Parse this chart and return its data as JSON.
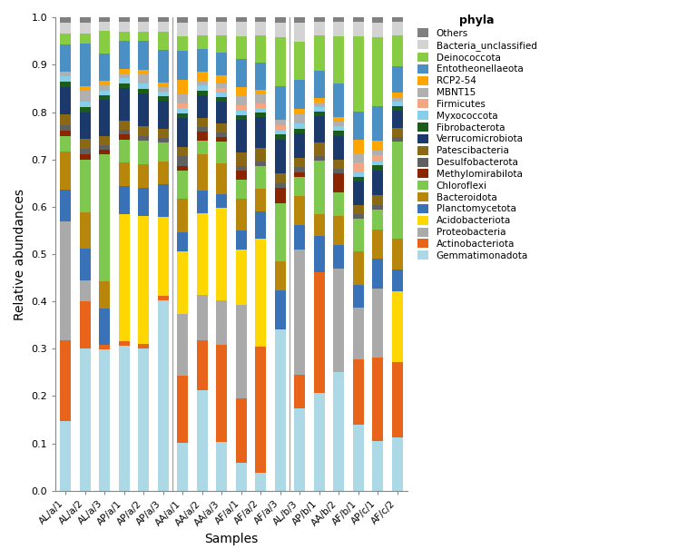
{
  "samples": [
    "AL/a/1",
    "AL/a/2",
    "AL/a/3",
    "AP/a/1",
    "AP/a/2",
    "AP/a/3",
    "AA/a/1",
    "AA/a/2",
    "AA/a/3",
    "AF/a/1",
    "AF/a/2",
    "AF/a/3",
    "AL/b/3",
    "AP/b/1",
    "AA/b/2",
    "AF/b/1",
    "AP/c/1",
    "AF/c/2"
  ],
  "group_dividers": [
    6,
    12
  ],
  "phyla": [
    "Gemmatimonadota",
    "Actinobacteriota",
    "Proteobacteria",
    "Acidobacteriota",
    "Planctomycetota",
    "Bacteroidota",
    "Chloroflexi",
    "Methylomirabilota",
    "Desulfobacterota",
    "Patescibacteria",
    "Verrucomicrobiota",
    "Fibrobacterota",
    "Myxococcota",
    "Firmicutes",
    "MBNT15",
    "RCP2-54",
    "Entotheonellaeota",
    "Deinococcota",
    "Bacteria_unclassified",
    "Others"
  ],
  "colors": {
    "Gemmatimonadota": "#ADD8E6",
    "Actinobacteriota": "#E8641A",
    "Proteobacteria": "#AAAAAA",
    "Acidobacteriota": "#FFD700",
    "Planctomycetota": "#3A72B8",
    "Bacteroidota": "#B8860B",
    "Chloroflexi": "#7EC850",
    "Methylomirabilota": "#8B2500",
    "Desulfobacterota": "#606060",
    "Patescibacteria": "#8B6914",
    "Verrucomicrobiota": "#1B3A6B",
    "Fibrobacterota": "#1A5C1A",
    "Myxococcota": "#87CEEB",
    "Firmicutes": "#F4A582",
    "MBNT15": "#B0B0B0",
    "RCP2-54": "#FFA500",
    "Entotheonellaeota": "#4A90C4",
    "Deinococcota": "#88CC44",
    "Bacteria_unclassified": "#D3D3D3",
    "Others": "#808080"
  },
  "data": {
    "Gemmatimonadota": [
      0.13,
      0.27,
      0.31,
      0.31,
      0.3,
      0.41,
      0.1,
      0.22,
      0.11,
      0.06,
      0.04,
      0.33,
      0.17,
      0.22,
      0.25,
      0.14,
      0.1,
      0.12
    ],
    "Actinobacteriota": [
      0.15,
      0.09,
      0.01,
      0.01,
      0.01,
      0.01,
      0.14,
      0.11,
      0.22,
      0.14,
      0.28,
      0.0,
      0.07,
      0.27,
      0.0,
      0.14,
      0.17,
      0.17
    ],
    "Proteobacteria": [
      0.22,
      0.04,
      0.0,
      0.0,
      0.0,
      0.0,
      0.13,
      0.1,
      0.1,
      0.2,
      0.0,
      0.0,
      0.26,
      0.0,
      0.22,
      0.11,
      0.14,
      0.0
    ],
    "Acidobacteriota": [
      0.0,
      0.0,
      0.0,
      0.27,
      0.27,
      0.17,
      0.13,
      0.18,
      0.21,
      0.12,
      0.24,
      0.0,
      0.0,
      0.0,
      0.0,
      0.0,
      0.0,
      0.16
    ],
    "Planctomycetota": [
      0.06,
      0.06,
      0.08,
      0.06,
      0.06,
      0.07,
      0.04,
      0.05,
      0.03,
      0.04,
      0.06,
      0.08,
      0.05,
      0.08,
      0.05,
      0.05,
      0.06,
      0.05
    ],
    "Bacteroidota": [
      0.07,
      0.07,
      0.06,
      0.05,
      0.05,
      0.05,
      0.07,
      0.08,
      0.07,
      0.07,
      0.05,
      0.06,
      0.06,
      0.05,
      0.06,
      0.07,
      0.06,
      0.07
    ],
    "Chloroflexi": [
      0.03,
      0.1,
      0.28,
      0.05,
      0.05,
      0.04,
      0.06,
      0.03,
      0.05,
      0.04,
      0.05,
      0.12,
      0.04,
      0.12,
      0.05,
      0.07,
      0.04,
      0.22
    ],
    "Methylomirabilota": [
      0.01,
      0.01,
      0.01,
      0.01,
      0.0,
      0.0,
      0.01,
      0.02,
      0.01,
      0.02,
      0.0,
      0.03,
      0.01,
      0.0,
      0.04,
      0.0,
      0.0,
      0.0
    ],
    "Desulfobacterota": [
      0.01,
      0.01,
      0.01,
      0.01,
      0.01,
      0.01,
      0.02,
      0.01,
      0.01,
      0.01,
      0.01,
      0.01,
      0.01,
      0.01,
      0.01,
      0.01,
      0.01,
      0.01
    ],
    "Patescibacteria": [
      0.02,
      0.02,
      0.02,
      0.02,
      0.02,
      0.02,
      0.02,
      0.02,
      0.02,
      0.03,
      0.03,
      0.02,
      0.02,
      0.03,
      0.02,
      0.02,
      0.02,
      0.02
    ],
    "Verrucomicrobiota": [
      0.05,
      0.05,
      0.08,
      0.07,
      0.07,
      0.06,
      0.06,
      0.05,
      0.05,
      0.07,
      0.07,
      0.07,
      0.05,
      0.06,
      0.05,
      0.05,
      0.05,
      0.04
    ],
    "Fibrobacterota": [
      0.01,
      0.01,
      0.01,
      0.01,
      0.01,
      0.01,
      0.01,
      0.01,
      0.01,
      0.01,
      0.01,
      0.01,
      0.01,
      0.01,
      0.01,
      0.01,
      0.01,
      0.01
    ],
    "Myxococcota": [
      0.01,
      0.01,
      0.01,
      0.01,
      0.01,
      0.01,
      0.01,
      0.01,
      0.01,
      0.01,
      0.01,
      0.01,
      0.01,
      0.01,
      0.01,
      0.01,
      0.01,
      0.01
    ],
    "Firmicutes": [
      0.0,
      0.0,
      0.0,
      0.0,
      0.0,
      0.0,
      0.01,
      0.0,
      0.01,
      0.01,
      0.01,
      0.01,
      0.0,
      0.0,
      0.0,
      0.02,
      0.01,
      0.0
    ],
    "MBNT15": [
      0.01,
      0.02,
      0.01,
      0.01,
      0.02,
      0.01,
      0.02,
      0.01,
      0.01,
      0.02,
      0.02,
      0.01,
      0.02,
      0.01,
      0.01,
      0.02,
      0.01,
      0.01
    ],
    "RCP2-54": [
      0.0,
      0.01,
      0.01,
      0.01,
      0.01,
      0.01,
      0.03,
      0.02,
      0.02,
      0.02,
      0.01,
      0.0,
      0.01,
      0.01,
      0.01,
      0.03,
      0.02,
      0.01
    ],
    "Entotheonellaeota": [
      0.05,
      0.08,
      0.06,
      0.06,
      0.06,
      0.07,
      0.06,
      0.05,
      0.05,
      0.06,
      0.06,
      0.07,
      0.06,
      0.06,
      0.07,
      0.06,
      0.07,
      0.06
    ],
    "Deinococcota": [
      0.02,
      0.02,
      0.05,
      0.02,
      0.02,
      0.04,
      0.03,
      0.03,
      0.04,
      0.05,
      0.06,
      0.1,
      0.08,
      0.08,
      0.1,
      0.16,
      0.14,
      0.07
    ],
    "Bacteria_unclassified": [
      0.02,
      0.02,
      0.02,
      0.02,
      0.02,
      0.02,
      0.03,
      0.03,
      0.03,
      0.03,
      0.03,
      0.03,
      0.04,
      0.03,
      0.03,
      0.03,
      0.03,
      0.03
    ],
    "Others": [
      0.01,
      0.01,
      0.01,
      0.01,
      0.01,
      0.01,
      0.01,
      0.01,
      0.01,
      0.01,
      0.01,
      0.01,
      0.01,
      0.01,
      0.01,
      0.01,
      0.01,
      0.01
    ]
  },
  "ylabel": "Relative abundances",
  "xlabel": "Samples",
  "legend_title": "phyla",
  "figsize": [
    7.68,
    6.16
  ],
  "background_color": "#ffffff"
}
